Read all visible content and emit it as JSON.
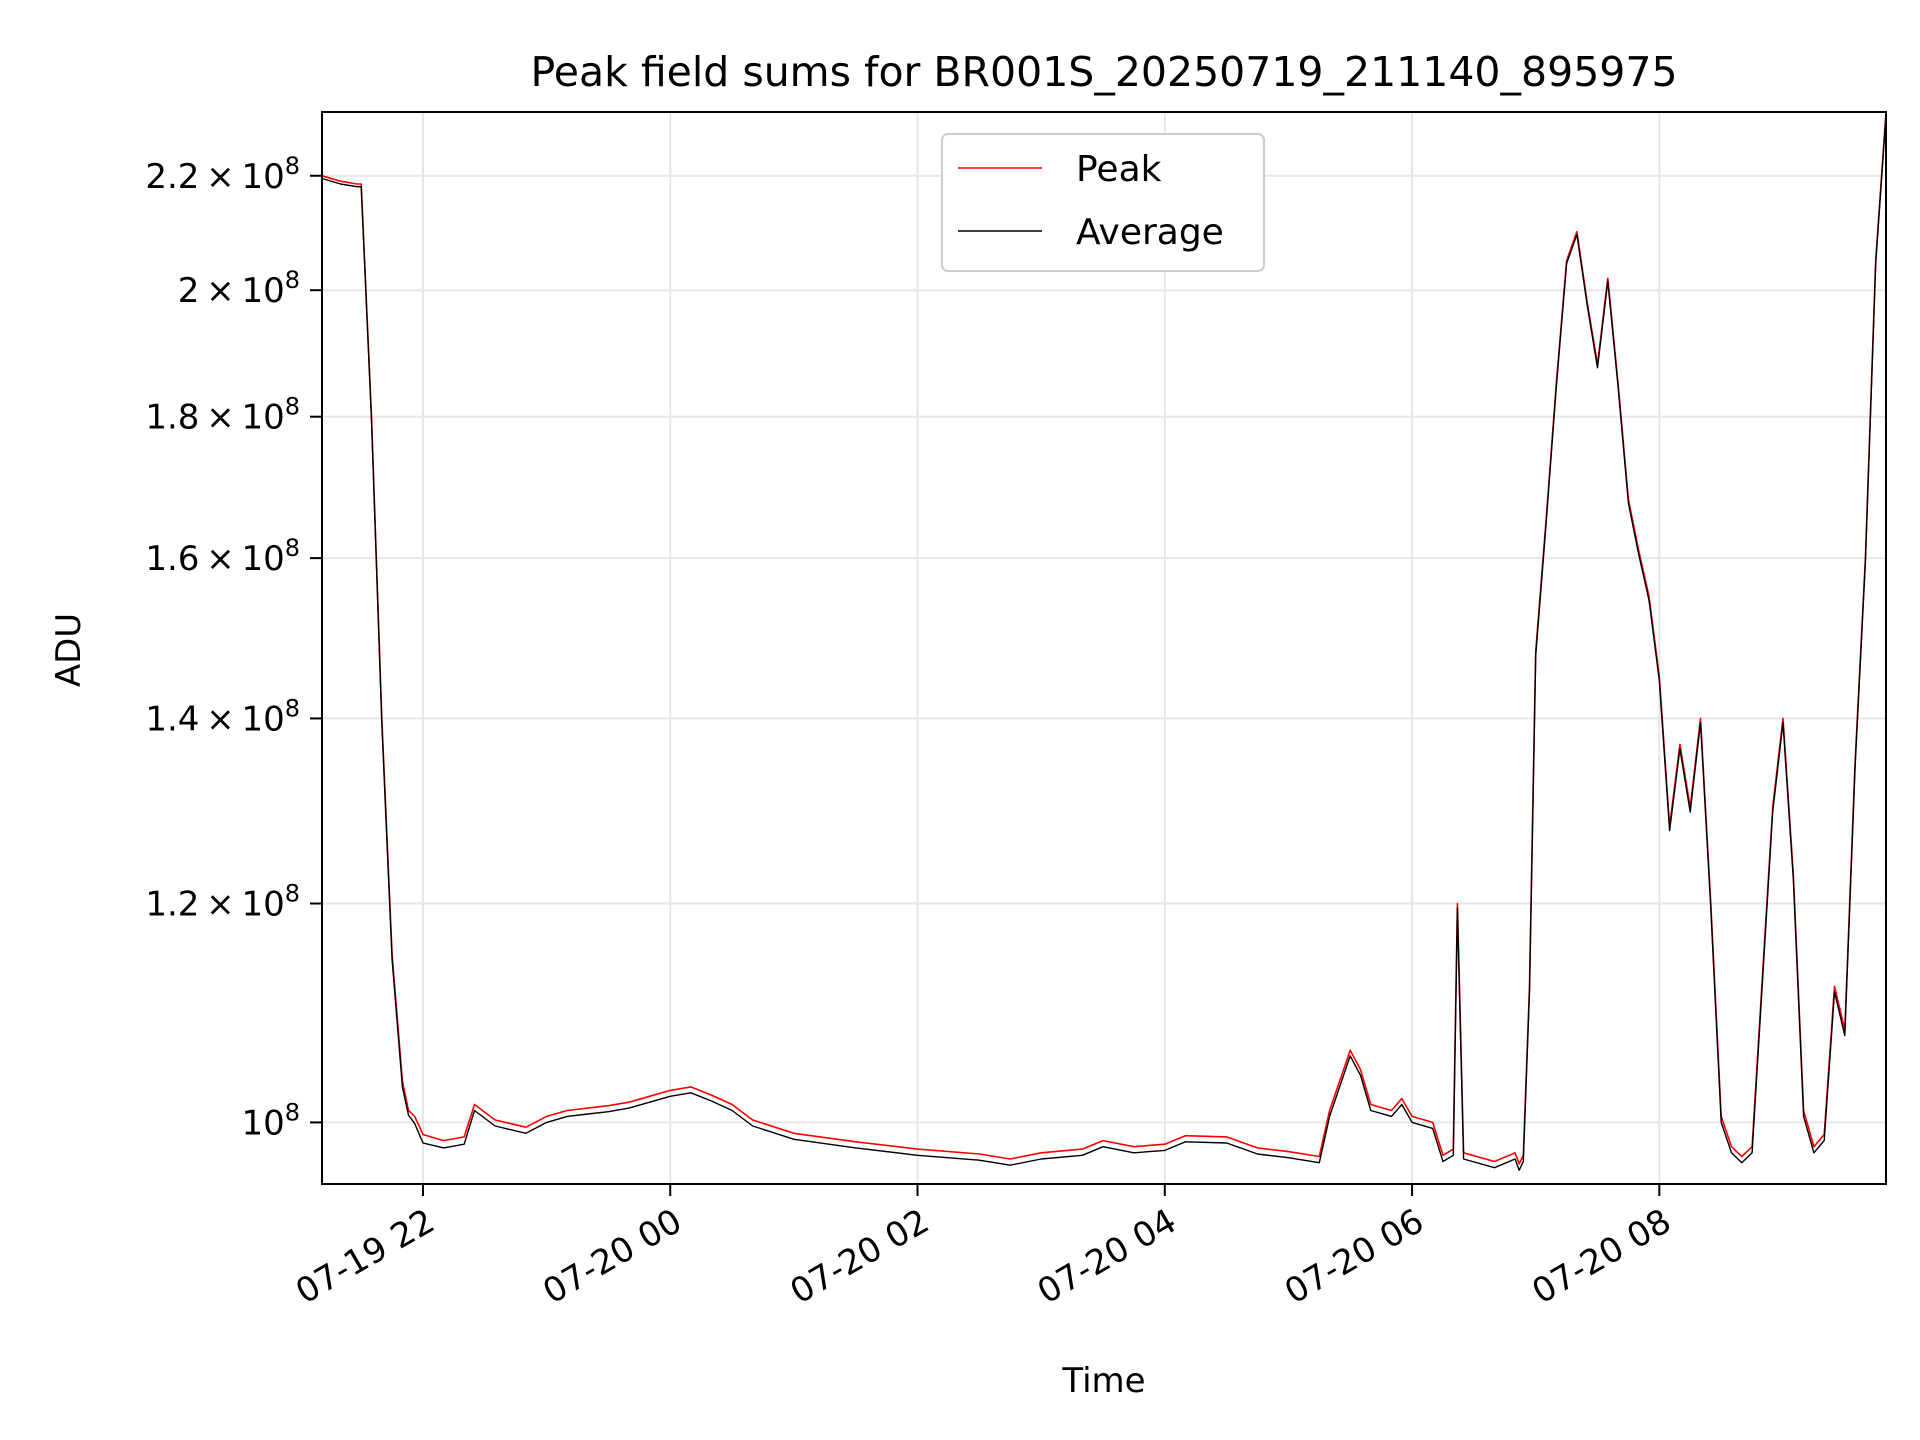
{
  "chart_data": {
    "type": "line",
    "title": "Peak field sums for BR001S_20250719_211140_895975",
    "xlabel": "Time",
    "ylabel": "ADU",
    "yscale": "log",
    "ylim": [
      95000000,
      232000000
    ],
    "xlim": [
      "07-19 21:11",
      "07-20 09:50"
    ],
    "grid": true,
    "legend": "upper center",
    "x_ticks": [
      {
        "label": "07-19 22",
        "time": "07-19 22:00"
      },
      {
        "label": "07-20 00",
        "time": "07-20 00:00"
      },
      {
        "label": "07-20 02",
        "time": "07-20 02:00"
      },
      {
        "label": "07-20 04",
        "time": "07-20 04:00"
      },
      {
        "label": "07-20 06",
        "time": "07-20 06:00"
      },
      {
        "label": "07-20 08",
        "time": "07-20 08:00"
      }
    ],
    "y_ticks": [
      {
        "mantissa": "",
        "exp": "8",
        "value": 100000000
      },
      {
        "mantissa": "1.2",
        "exp": "8",
        "value": 120000000
      },
      {
        "mantissa": "1.4",
        "exp": "8",
        "value": 140000000
      },
      {
        "mantissa": "1.6",
        "exp": "8",
        "value": 160000000
      },
      {
        "mantissa": "1.8",
        "exp": "8",
        "value": 180000000
      },
      {
        "mantissa": "2",
        "exp": "8",
        "value": 200000000
      },
      {
        "mantissa": "2.2",
        "exp": "8",
        "value": 220000000
      }
    ],
    "series": [
      {
        "name": "Peak",
        "color": "#ff0000"
      },
      {
        "name": "Average",
        "color": "#000000"
      }
    ],
    "x": [
      "07-19 21:11",
      "07-19 21:20",
      "07-19 21:28",
      "07-19 21:30",
      "07-19 21:35",
      "07-19 21:40",
      "07-19 21:45",
      "07-19 21:50",
      "07-19 21:53",
      "07-19 21:56",
      "07-19 22:00",
      "07-19 22:10",
      "07-19 22:20",
      "07-19 22:25",
      "07-19 22:35",
      "07-19 22:50",
      "07-19 23:00",
      "07-19 23:10",
      "07-19 23:20",
      "07-19 23:30",
      "07-19 23:40",
      "07-19 23:50",
      "07-20 00:00",
      "07-20 00:10",
      "07-20 00:20",
      "07-20 00:30",
      "07-20 00:40",
      "07-20 01:00",
      "07-20 01:30",
      "07-20 02:00",
      "07-20 02:30",
      "07-20 02:45",
      "07-20 03:00",
      "07-20 03:20",
      "07-20 03:30",
      "07-20 03:45",
      "07-20 04:00",
      "07-20 04:10",
      "07-20 04:30",
      "07-20 04:45",
      "07-20 05:00",
      "07-20 05:15",
      "07-20 05:20",
      "07-20 05:30",
      "07-20 05:35",
      "07-20 05:40",
      "07-20 05:50",
      "07-20 05:55",
      "07-20 06:00",
      "07-20 06:10",
      "07-20 06:15",
      "07-20 06:20",
      "07-20 06:22",
      "07-20 06:25",
      "07-20 06:40",
      "07-20 06:50",
      "07-20 06:52",
      "07-20 06:54",
      "07-20 06:57",
      "07-20 07:00",
      "07-20 07:05",
      "07-20 07:10",
      "07-20 07:15",
      "07-20 07:20",
      "07-20 07:25",
      "07-20 07:30",
      "07-20 07:35",
      "07-20 07:40",
      "07-20 07:45",
      "07-20 07:50",
      "07-20 07:55",
      "07-20 08:00",
      "07-20 08:05",
      "07-20 08:10",
      "07-20 08:15",
      "07-20 08:20",
      "07-20 08:25",
      "07-20 08:30",
      "07-20 08:35",
      "07-20 08:40",
      "07-20 08:45",
      "07-20 08:55",
      "07-20 09:00",
      "07-20 09:05",
      "07-20 09:10",
      "07-20 09:15",
      "07-20 09:20",
      "07-20 09:25",
      "07-20 09:30",
      "07-20 09:35",
      "07-20 09:40",
      "07-20 09:45",
      "07-20 09:50"
    ],
    "values_peak": [
      220000000,
      219000000,
      218500000,
      218500000,
      180000000,
      140000000,
      115000000,
      103500000,
      101000000,
      100500000,
      99000000,
      98500000,
      98800000,
      101500000,
      100200000,
      99600000,
      100500000,
      101000000,
      101200000,
      101400000,
      101700000,
      102200000,
      102700000,
      103000000,
      102300000,
      101500000,
      100200000,
      99100000,
      98400000,
      97800000,
      97400000,
      97000000,
      97500000,
      97800000,
      98500000,
      98000000,
      98200000,
      98900000,
      98800000,
      97900000,
      97600000,
      97200000,
      101000000,
      106200000,
      104500000,
      101500000,
      101000000,
      102000000,
      100500000,
      100000000,
      97300000,
      97800000,
      120000000,
      97500000,
      96800000,
      97500000,
      96600000,
      97300000,
      112000000,
      148000000,
      165000000,
      185000000,
      205000000,
      210000000,
      198000000,
      188000000,
      202000000,
      185000000,
      168000000,
      161000000,
      155000000,
      145000000,
      128000000,
      137000000,
      130000000,
      140000000,
      120000000,
      100500000,
      98000000,
      97200000,
      98000000,
      130000000,
      140000000,
      123000000,
      101000000,
      98000000,
      99000000,
      112000000,
      108000000,
      135000000,
      160000000,
      205000000,
      232000000
    ],
    "values_average": [
      219500000,
      218500000,
      218000000,
      218000000,
      179500000,
      139500000,
      114500000,
      103000000,
      100600000,
      99900000,
      98300000,
      97900000,
      98200000,
      101000000,
      99700000,
      99100000,
      100000000,
      100500000,
      100700000,
      100900000,
      101200000,
      101700000,
      102200000,
      102500000,
      101800000,
      101000000,
      99700000,
      98600000,
      97900000,
      97300000,
      96900000,
      96500000,
      97000000,
      97300000,
      98000000,
      97500000,
      97700000,
      98400000,
      98300000,
      97400000,
      97100000,
      96700000,
      100500000,
      105700000,
      104000000,
      101000000,
      100500000,
      101500000,
      100000000,
      99500000,
      96800000,
      97300000,
      119500000,
      97000000,
      96300000,
      97000000,
      96100000,
      96800000,
      111500000,
      147500000,
      164500000,
      184500000,
      204500000,
      209500000,
      197500000,
      187500000,
      201500000,
      184500000,
      167500000,
      160500000,
      154500000,
      144500000,
      127500000,
      136500000,
      129500000,
      139500000,
      119500000,
      100000000,
      97500000,
      96700000,
      97500000,
      129500000,
      139500000,
      122500000,
      100500000,
      97500000,
      98500000,
      111500000,
      107500000,
      134500000,
      159500000,
      204500000,
      231500000
    ]
  }
}
